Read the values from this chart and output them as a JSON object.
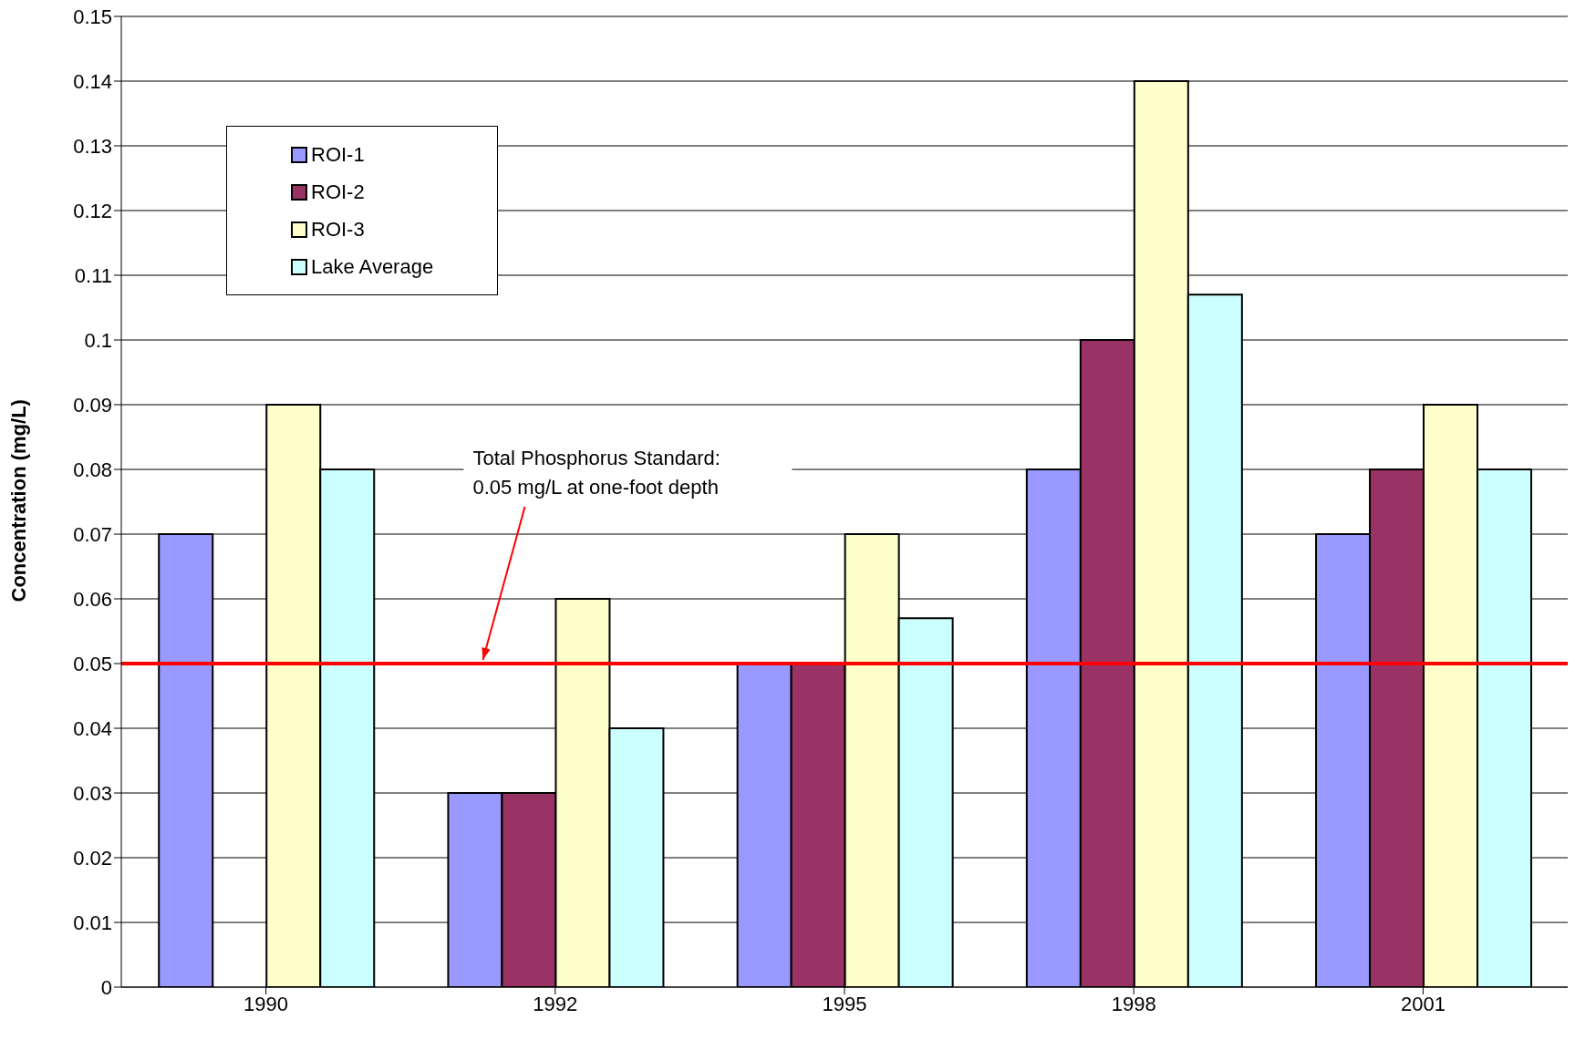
{
  "chart_data": {
    "type": "bar",
    "ylabel": "Concentration (mg/L)",
    "categories": [
      "1990",
      "1992",
      "1995",
      "1998",
      "2001"
    ],
    "series": [
      {
        "name": "ROI-1",
        "color": "#9999ff",
        "values": [
          0.07,
          0.03,
          0.05,
          0.08,
          0.07
        ]
      },
      {
        "name": "ROI-2",
        "color": "#993366",
        "values": [
          null,
          0.03,
          0.05,
          0.1,
          0.08
        ]
      },
      {
        "name": "ROI-3",
        "color": "#ffffcc",
        "values": [
          0.09,
          0.06,
          0.07,
          0.14,
          0.09
        ]
      },
      {
        "name": "Lake Average",
        "color": "#ccffff",
        "values": [
          0.08,
          0.04,
          0.057,
          0.107,
          0.08
        ]
      }
    ],
    "ylim": [
      0,
      0.15
    ],
    "yticks": [
      0,
      0.01,
      0.02,
      0.03,
      0.04,
      0.05,
      0.06,
      0.07,
      0.08,
      0.09,
      0.1,
      0.11,
      0.12,
      0.13,
      0.14,
      0.15
    ],
    "ref_lines": [
      {
        "axis": "y",
        "value": 0.05,
        "label": "Total Phosphorus Standard:\n0.05 mg/L at one-foot depth",
        "color": "#ff0000"
      }
    ],
    "grid": "y",
    "legend": "top left"
  }
}
